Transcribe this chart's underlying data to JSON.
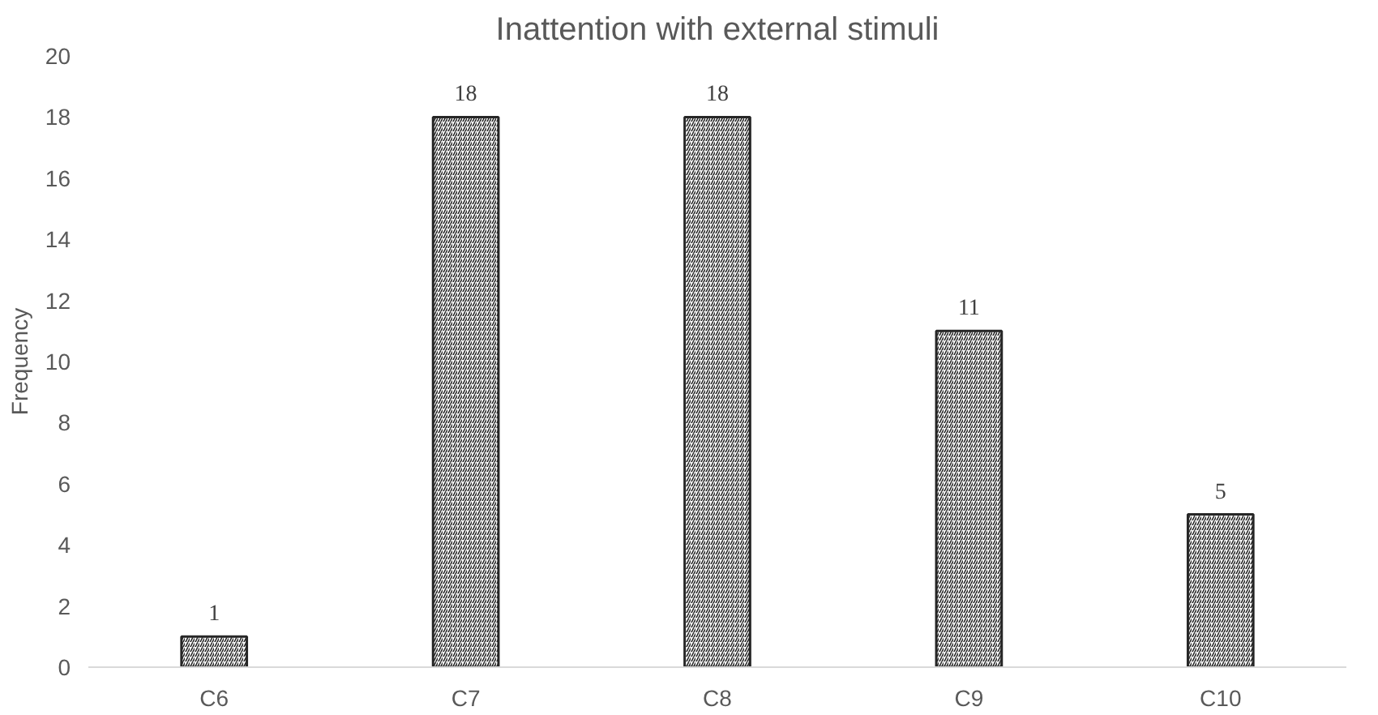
{
  "chart_data": {
    "type": "bar",
    "title": "Inattention with external stimuli",
    "ylabel": "Frequency",
    "categories": [
      "C6",
      "C7",
      "C8",
      "C9",
      "C10"
    ],
    "values": [
      1,
      18,
      18,
      11,
      5
    ],
    "color": "#262626",
    "ylim": [
      0,
      20
    ],
    "yticks": [
      0,
      2,
      4,
      6,
      8,
      10,
      12,
      14,
      16,
      18,
      20
    ],
    "grid": false,
    "data_labels": true
  }
}
